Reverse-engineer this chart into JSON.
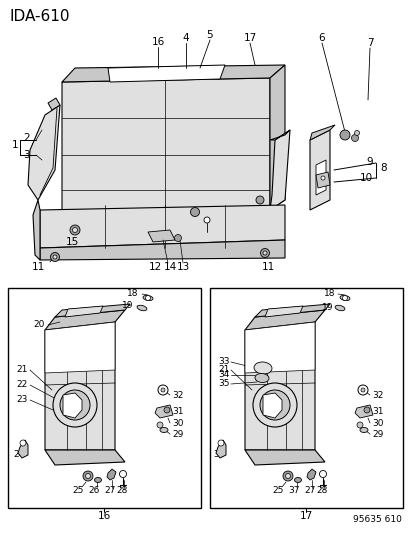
{
  "title": "IDA-610",
  "code": "95635 610",
  "bg": "#f5f5f5",
  "fg": "#000000",
  "white": "#ffffff",
  "gray_light": "#e0e0e0",
  "gray_mid": "#c8c8c8",
  "gray_dark": "#a0a0a0"
}
